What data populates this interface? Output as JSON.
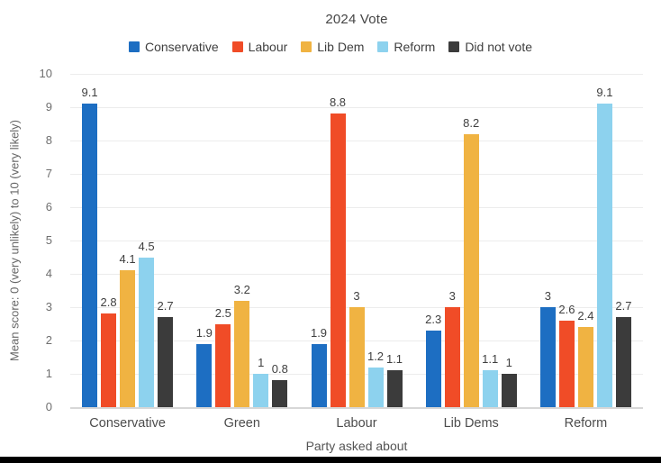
{
  "chart_data": {
    "type": "bar",
    "title": "2024 Vote",
    "xlabel": "Party asked about",
    "ylabel": "Mean score: 0 (very unlikely) to 10 (very likely)",
    "ylim": [
      0,
      10
    ],
    "ytick_interval": 1,
    "grid": true,
    "legend_position": "top",
    "categories": [
      "Conservative",
      "Green",
      "Labour",
      "Lib Dems",
      "Reform"
    ],
    "series": [
      {
        "name": "Conservative",
        "color": "#1d6ec2",
        "values": [
          9.1,
          1.9,
          1.9,
          2.3,
          3
        ]
      },
      {
        "name": "Labour",
        "color": "#f04c27",
        "values": [
          2.8,
          2.5,
          8.8,
          3,
          2.6
        ]
      },
      {
        "name": "Lib Dem",
        "color": "#f0b342",
        "values": [
          4.1,
          3.2,
          3,
          8.2,
          2.4
        ]
      },
      {
        "name": "Reform",
        "color": "#8dd2ee",
        "values": [
          4.5,
          1,
          1.2,
          1.1,
          9.1
        ]
      },
      {
        "name": "Did not vote",
        "color": "#3b3b3b",
        "values": [
          2.7,
          0.8,
          1.1,
          1,
          2.7
        ]
      }
    ]
  }
}
